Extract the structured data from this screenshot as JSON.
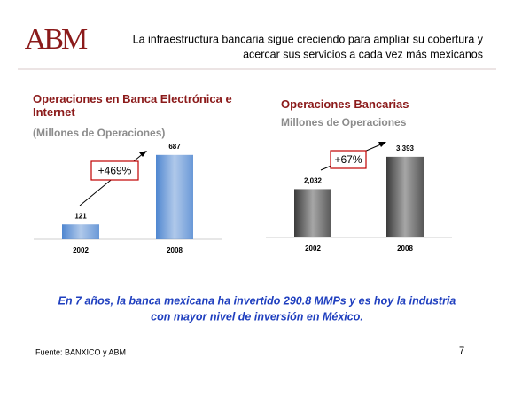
{
  "header": {
    "logo": "ABM",
    "title_lines": [
      "La infraestructura bancaria sigue creciendo para ampliar su cobertura y",
      "acercar sus servicios a cada vez más mexicanos"
    ]
  },
  "chart_data": [
    {
      "type": "bar",
      "title": "Operaciones en Banca Electrónica e Internet",
      "subtitle": "(Millones de Operaciones)",
      "categories": [
        "2002",
        "2008"
      ],
      "values": [
        121,
        687
      ],
      "color": "#4f86d0",
      "ylim": [
        0,
        700
      ],
      "annotation": "+469%"
    },
    {
      "type": "bar",
      "title": "Operaciones Bancarias",
      "subtitle": "Millones de Operaciones",
      "categories": [
        "2002",
        "2008"
      ],
      "values": [
        2032,
        3393
      ],
      "value_labels": [
        "2,032",
        "3,393"
      ],
      "color": "#3a3a3a",
      "ylim": [
        0,
        3500
      ],
      "annotation": "+67%"
    }
  ],
  "conclusion_lines": [
    "En 7 años, la banca mexicana ha invertido 290.8 MMPs y es hoy la industria",
    "con mayor nivel de inversión en México."
  ],
  "source": "Fuente: BANXICO y ABM",
  "page_number": "7"
}
